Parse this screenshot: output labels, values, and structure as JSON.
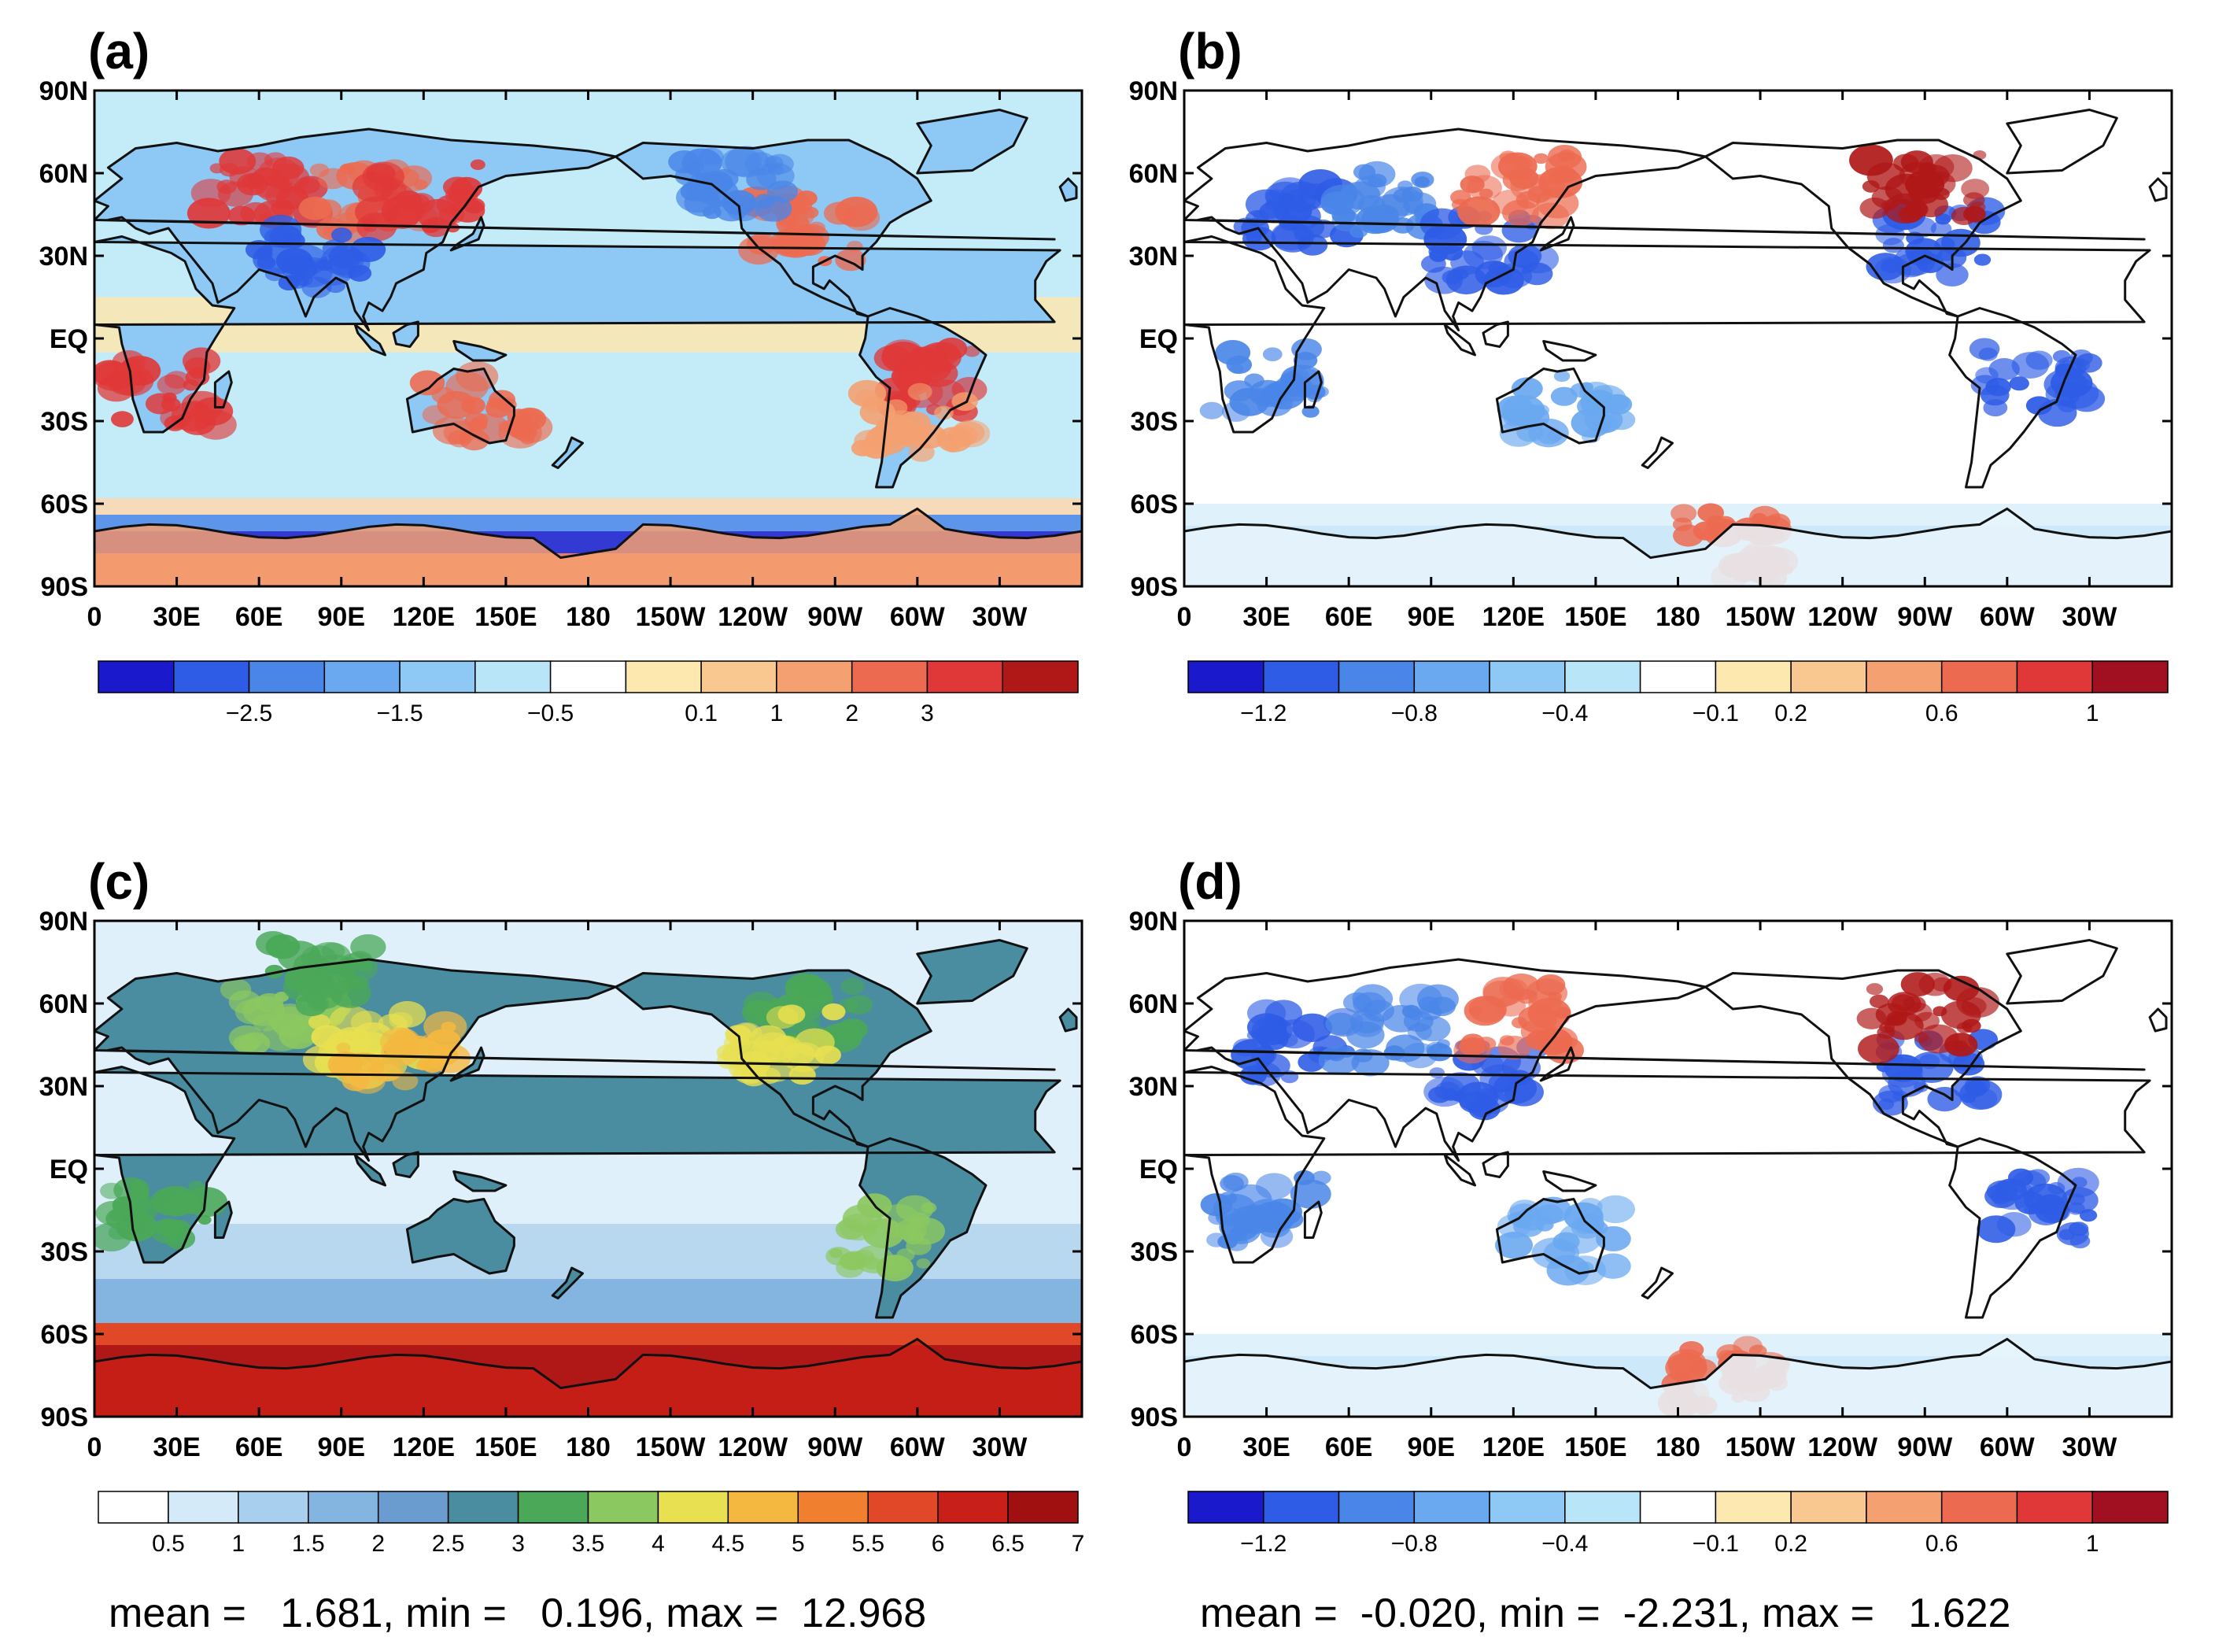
{
  "panels": [
    {
      "id": "a",
      "label": "(a)",
      "field": "anomaly",
      "colors": [
        "#1a1acc",
        "#2e5ce6",
        "#4a86e8",
        "#6aa8f0",
        "#8ec8f4",
        "#b8e6f8",
        "#ffffff",
        "#fde8b0",
        "#f8c890",
        "#f4a070",
        "#ec6a50",
        "#e03838",
        "#b01818"
      ],
      "tick_labels": [
        "−2.5",
        "−1.5",
        "−0.5",
        "0.1",
        "1",
        "2",
        "3"
      ],
      "tick_bins": [
        2,
        4,
        6,
        8,
        9,
        10,
        11
      ],
      "stats": null
    },
    {
      "id": "b",
      "label": "(b)",
      "field": "difference",
      "colors": [
        "#1a1acc",
        "#2e5ce6",
        "#4a86e8",
        "#6aa8f0",
        "#8ec8f4",
        "#b8e6f8",
        "#ffffff",
        "#fde8b0",
        "#f8c890",
        "#f4a070",
        "#ec6a50",
        "#e03838",
        "#a01020"
      ],
      "tick_labels": [
        "−1.2",
        "−0.8",
        "−0.4",
        "−0.1",
        "0.2",
        "0.6",
        "1"
      ],
      "tick_bins": [
        1,
        3,
        5,
        7,
        8,
        10,
        12
      ],
      "stats": null
    },
    {
      "id": "c",
      "label": "(c)",
      "field": "magnitude",
      "colors": [
        "#ffffff",
        "#d4eaf8",
        "#a8d0ee",
        "#84b4e0",
        "#6a9cd0",
        "#4a8ca0",
        "#4aa858",
        "#8cc860",
        "#e8e050",
        "#f4b840",
        "#f08030",
        "#e04828",
        "#c82018",
        "#a01010"
      ],
      "tick_labels": [
        "0.5",
        "1",
        "1.5",
        "2",
        "2.5",
        "3",
        "3.5",
        "4",
        "4.5",
        "5",
        "5.5",
        "6",
        "6.5",
        "7"
      ],
      "tick_bins": [
        1,
        2,
        3,
        4,
        5,
        6,
        7,
        8,
        9,
        10,
        11,
        12,
        13,
        14
      ],
      "stats": "mean =   1.681, min =   0.196, max =  12.968"
    },
    {
      "id": "d",
      "label": "(d)",
      "field": "difference",
      "colors": [
        "#1a1acc",
        "#2e5ce6",
        "#4a86e8",
        "#6aa8f0",
        "#8ec8f4",
        "#b8e6f8",
        "#ffffff",
        "#fde8b0",
        "#f8c890",
        "#f4a070",
        "#ec6a50",
        "#e03838",
        "#a01020"
      ],
      "tick_labels": [
        "−1.2",
        "−0.8",
        "−0.4",
        "−0.1",
        "0.2",
        "0.6",
        "1"
      ],
      "tick_bins": [
        1,
        3,
        5,
        7,
        8,
        10,
        12
      ],
      "stats": "mean =  -0.020, min =  -2.231, max =   1.622"
    }
  ],
  "lat_labels": [
    "90N",
    "60N",
    "30N",
    "EQ",
    "30S",
    "60S",
    "90S"
  ],
  "lon_labels": [
    "0",
    "30E",
    "60E",
    "90E",
    "120E",
    "150E",
    "180",
    "150W",
    "120W",
    "90W",
    "60W",
    "30W"
  ],
  "colors": {
    "coast": "#111111",
    "frame": "#000000"
  }
}
